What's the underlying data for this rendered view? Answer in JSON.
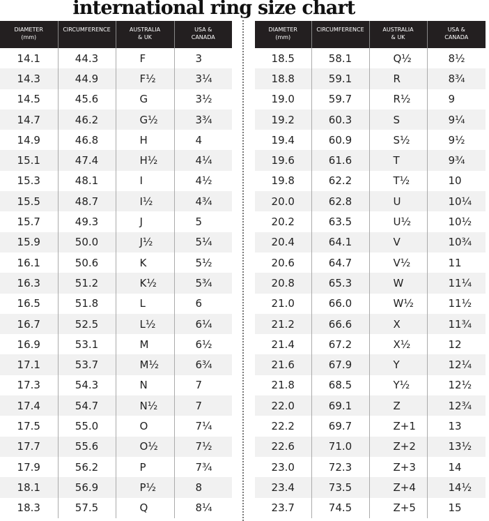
{
  "title": "international ring size chart",
  "headers": {
    "diameter": "DIAMETER",
    "diameter_unit": "(mm)",
    "circumference": "CIRCUMFERENCE",
    "au_uk_1": "AUSTRALIA",
    "au_uk_2": "& UK",
    "usa_1": "USA &",
    "usa_2": "CANADA"
  },
  "left_rows": [
    [
      "14.1",
      "44.3",
      "F",
      "3"
    ],
    [
      "14.3",
      "44.9",
      "F½",
      "3¼"
    ],
    [
      "14.5",
      "45.6",
      "G",
      "3½"
    ],
    [
      "14.7",
      "46.2",
      "G½",
      "3¾"
    ],
    [
      "14.9",
      "46.8",
      "H",
      "4"
    ],
    [
      "15.1",
      "47.4",
      "H½",
      "4¼"
    ],
    [
      "15.3",
      "48.1",
      "I",
      "4½"
    ],
    [
      "15.5",
      "48.7",
      "I½",
      "4¾"
    ],
    [
      "15.7",
      "49.3",
      "J",
      "5"
    ],
    [
      "15.9",
      "50.0",
      "J½",
      "5¼"
    ],
    [
      "16.1",
      "50.6",
      "K",
      "5½"
    ],
    [
      "16.3",
      "51.2",
      "K½",
      "5¾"
    ],
    [
      "16.5",
      "51.8",
      "L",
      "6"
    ],
    [
      "16.7",
      "52.5",
      "L½",
      "6¼"
    ],
    [
      "16.9",
      "53.1",
      "M",
      "6½"
    ],
    [
      "17.1",
      "53.7",
      "M½",
      "6¾"
    ],
    [
      "17.3",
      "54.3",
      "N",
      "7"
    ],
    [
      "17.4",
      "54.7",
      "N½",
      "7"
    ],
    [
      "17.5",
      "55.0",
      "O",
      "7¼"
    ],
    [
      "17.7",
      "55.6",
      "O½",
      "7½"
    ],
    [
      "17.9",
      "56.2",
      "P",
      "7¾"
    ],
    [
      "18.1",
      "56.9",
      "P½",
      "8"
    ],
    [
      "18.3",
      "57.5",
      "Q",
      "8¼"
    ]
  ],
  "right_rows": [
    [
      "18.5",
      "58.1",
      "Q½",
      "8½"
    ],
    [
      "18.8",
      "59.1",
      "R",
      "8¾"
    ],
    [
      "19.0",
      "59.7",
      "R½",
      "9"
    ],
    [
      "19.2",
      "60.3",
      "S",
      "9¼"
    ],
    [
      "19.4",
      "60.9",
      "S½",
      "9½"
    ],
    [
      "19.6",
      "61.6",
      "T",
      "9¾"
    ],
    [
      "19.8",
      "62.2",
      "T½",
      "10"
    ],
    [
      "20.0",
      "62.8",
      "U",
      "10¼"
    ],
    [
      "20.2",
      "63.5",
      "U½",
      "10½"
    ],
    [
      "20.4",
      "64.1",
      "V",
      "10¾"
    ],
    [
      "20.6",
      "64.7",
      "V½",
      "11"
    ],
    [
      "20.8",
      "65.3",
      "W",
      "11¼"
    ],
    [
      "21.0",
      "66.0",
      "W½",
      "11½"
    ],
    [
      "21.2",
      "66.6",
      "X",
      "11¾"
    ],
    [
      "21.4",
      "67.2",
      "X½",
      "12"
    ],
    [
      "21.6",
      "67.9",
      "Y",
      "12¼"
    ],
    [
      "21.8",
      "68.5",
      "Y½",
      "12½"
    ],
    [
      "22.0",
      "69.1",
      "Z",
      "12¾"
    ],
    [
      "22.2",
      "69.7",
      "Z+1",
      "13"
    ],
    [
      "22.6",
      "71.0",
      "Z+2",
      "13½"
    ],
    [
      "23.0",
      "72.3",
      "Z+3",
      "14"
    ],
    [
      "23.4",
      "73.5",
      "Z+4",
      "14½"
    ],
    [
      "23.7",
      "74.5",
      "Z+5",
      "15"
    ]
  ],
  "colors": {
    "header_bg": "#231f20",
    "header_text": "#ffffff",
    "alt_row": "#f1f1f1"
  }
}
